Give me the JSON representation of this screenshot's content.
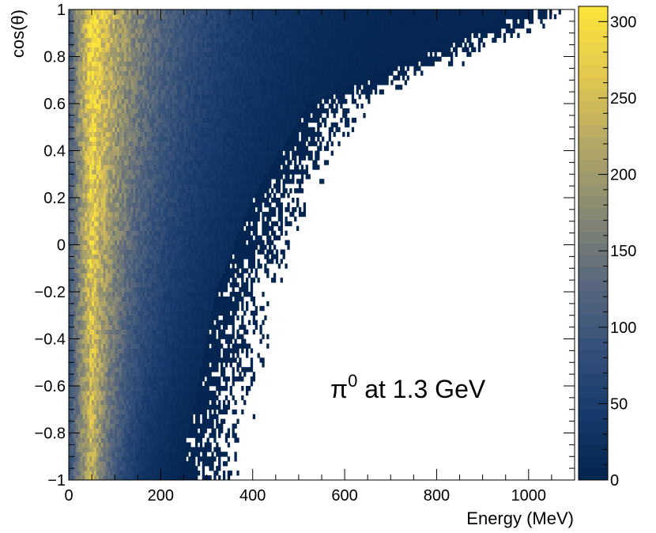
{
  "chart_data": {
    "type": "heatmap",
    "title": "",
    "annotation": {
      "particle": "π",
      "superscript": "0",
      "text": " at 1.3 GeV"
    },
    "xlabel": "Energy (MeV)",
    "ylabel": "cos(θ)",
    "xlim": [
      0,
      1100
    ],
    "ylim": [
      -1,
      1
    ],
    "x_ticks": [
      0,
      200,
      400,
      600,
      800,
      1000
    ],
    "x_tick_labels": [
      "0",
      "200",
      "400",
      "600",
      "800",
      "1000"
    ],
    "y_ticks": [
      -1,
      -0.8,
      -0.6,
      -0.4,
      -0.2,
      0,
      0.2,
      0.4,
      0.6,
      0.8,
      1
    ],
    "y_tick_labels": [
      "−1",
      "−0.8",
      "−0.6",
      "−0.4",
      "−0.2",
      "0",
      "0.2",
      "0.4",
      "0.6",
      "0.8",
      "1"
    ],
    "bins": {
      "x_bins": 220,
      "y_bins": 100,
      "energy_bin_width_mev": 5
    },
    "distribution_summary": {
      "peak_energy_mev": 50,
      "peak_counts_at_cos_1": 300,
      "peak_counts_at_cos_minus_1": 240,
      "kinematic_edge_mev": [
        {
          "cos": -1.0,
          "energy": 300
        },
        {
          "cos": -0.6,
          "energy": 340
        },
        {
          "cos": -0.2,
          "energy": 380
        },
        {
          "cos": 0.2,
          "energy": 460
        },
        {
          "cos": 0.6,
          "energy": 580
        },
        {
          "cos": 1.0,
          "energy": 1050
        }
      ]
    },
    "colorbar": {
      "min": 0,
      "max": 310,
      "ticks": [
        0,
        50,
        100,
        150,
        200,
        250,
        300
      ],
      "tick_labels": [
        "0",
        "50",
        "100",
        "150",
        "200",
        "250",
        "300"
      ],
      "palette": [
        "#03244f",
        "#163a6b",
        "#37527a",
        "#5c6a7d",
        "#8a8a72",
        "#b5a866",
        "#e4c84f",
        "#fbe53a"
      ]
    }
  }
}
